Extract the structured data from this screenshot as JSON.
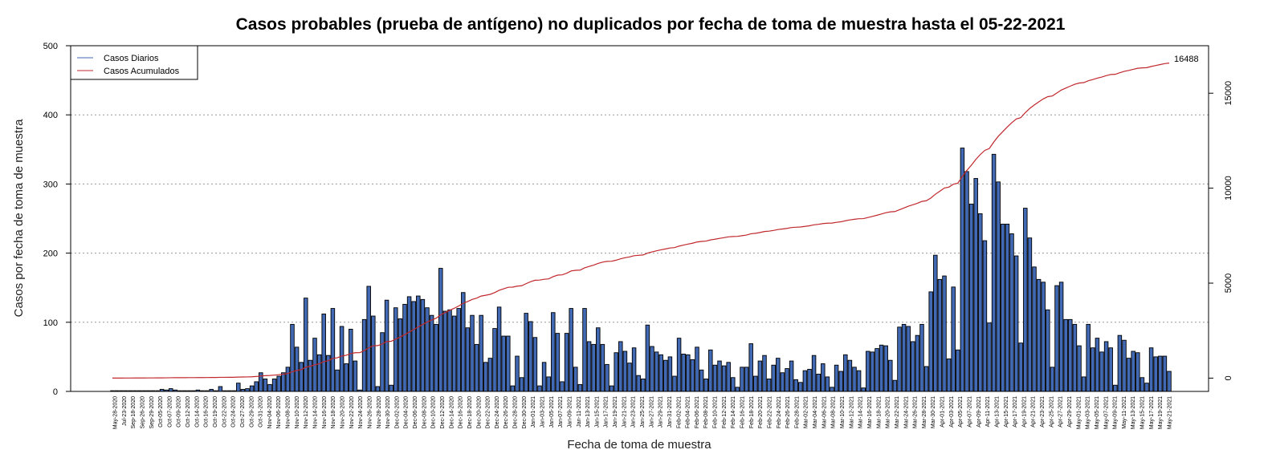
{
  "chart_data": {
    "type": "bar",
    "title": "Casos probables (prueba de antígeno) no duplicados por fecha de toma de muestra hasta el 05-22-2021",
    "xlabel": "Fecha de toma de muestra",
    "ylabel": "Casos por fecha de toma de muestra",
    "ylim": [
      0,
      500
    ],
    "y2lim": [
      -700,
      17500
    ],
    "yticks": [
      0,
      100,
      200,
      300,
      400,
      500
    ],
    "y2ticks": [
      0,
      5000,
      10000,
      15000
    ],
    "grid": "horizontal dotted",
    "legend_position": "top-left",
    "end_label": "16488",
    "colors": {
      "bars": "#4169b4",
      "line": "#c0282d"
    },
    "series": [
      {
        "name": "Casos Diarios",
        "type": "bar"
      },
      {
        "name": "Casos Acumulados",
        "type": "line"
      }
    ],
    "tick_labels": [
      "May-28-2020",
      "Jul-23-2020",
      "Sep-18-2020",
      "Sep-26-2020",
      "Sep-29-2020",
      "Oct-05-2020",
      "Oct-07-2020",
      "Oct-09-2020",
      "Oct-12-2020",
      "Oct-14-2020",
      "Oct-16-2020",
      "Oct-19-2020",
      "Oct-22-2020",
      "Oct-24-2020",
      "Oct-27-2020",
      "Oct-29-2020",
      "Oct-31-2020",
      "Nov-04-2020",
      "Nov-06-2020",
      "Nov-08-2020",
      "Nov-10-2020",
      "Nov-12-2020",
      "Nov-14-2020",
      "Nov-16-2020",
      "Nov-18-2020",
      "Nov-20-2020",
      "Nov-22-2020",
      "Nov-24-2020",
      "Nov-26-2020",
      "Nov-28-2020",
      "Nov-30-2020",
      "Dec-02-2020",
      "Dec-04-2020",
      "Dec-06-2020",
      "Dec-08-2020",
      "Dec-10-2020",
      "Dec-12-2020",
      "Dec-14-2020",
      "Dec-16-2020",
      "Dec-18-2020",
      "Dec-20-2020",
      "Dec-22-2020",
      "Dec-24-2020",
      "Dec-26-2020",
      "Dec-28-2020",
      "Dec-30-2020",
      "Jan-01-2021",
      "Jan-03-2021",
      "Jan-05-2021",
      "Jan-07-2021",
      "Jan-09-2021",
      "Jan-11-2021",
      "Jan-13-2021",
      "Jan-15-2021",
      "Jan-17-2021",
      "Jan-19-2021",
      "Jan-21-2021",
      "Jan-23-2021",
      "Jan-25-2021",
      "Jan-27-2021",
      "Jan-29-2021",
      "Jan-31-2021",
      "Feb-02-2021",
      "Feb-04-2021",
      "Feb-06-2021",
      "Feb-08-2021",
      "Feb-10-2021",
      "Feb-12-2021",
      "Feb-14-2021",
      "Feb-16-2021",
      "Feb-18-2021",
      "Feb-20-2021",
      "Feb-22-2021",
      "Feb-24-2021",
      "Feb-26-2021",
      "Feb-28-2021",
      "Mar-02-2021",
      "Mar-04-2021",
      "Mar-06-2021",
      "Mar-08-2021",
      "Mar-10-2021",
      "Mar-12-2021",
      "Mar-14-2021",
      "Mar-16-2021",
      "Mar-18-2021",
      "Mar-20-2021",
      "Mar-22-2021",
      "Mar-24-2021",
      "Mar-26-2021",
      "Mar-28-2021",
      "Mar-30-2021",
      "Apr-01-2021",
      "Apr-03-2021",
      "Apr-05-2021",
      "Apr-07-2021",
      "Apr-09-2021",
      "Apr-11-2021",
      "Apr-13-2021",
      "Apr-15-2021",
      "Apr-17-2021",
      "Apr-19-2021",
      "Apr-21-2021",
      "Apr-23-2021",
      "Apr-25-2021",
      "Apr-27-2021",
      "Apr-29-2021",
      "May-01-2021",
      "May-03-2021",
      "May-05-2021",
      "May-07-2021",
      "May-09-2021",
      "May-11-2021",
      "May-13-2021",
      "May-15-2021",
      "May-17-2021",
      "May-19-2021",
      "May-21-2021"
    ],
    "daily_values": [
      1,
      1,
      1,
      1,
      1,
      1,
      1,
      1,
      1,
      1,
      1,
      3,
      2,
      4,
      2,
      1,
      1,
      1,
      1,
      2,
      1,
      1,
      3,
      1,
      7,
      1,
      1,
      1,
      12,
      3,
      4,
      8,
      14,
      27,
      18,
      10,
      18,
      22,
      27,
      35,
      97,
      64,
      42,
      135,
      45,
      77,
      53,
      112,
      52,
      120,
      31,
      94,
      40,
      90,
      44,
      2,
      104,
      152,
      109,
      7,
      85,
      132,
      9,
      121,
      105,
      126,
      137,
      130,
      138,
      133,
      121,
      110,
      97,
      178,
      116,
      118,
      109,
      120,
      143,
      92,
      110,
      68,
      110,
      42,
      48,
      91,
      122,
      80,
      80,
      8,
      51,
      20,
      113,
      101,
      78,
      8,
      42,
      21,
      114,
      84,
      14,
      84,
      120,
      35,
      10,
      120,
      72,
      68,
      92,
      68,
      39,
      8,
      56,
      72,
      58,
      41,
      63,
      23,
      18,
      96,
      65,
      57,
      53,
      45,
      50,
      22,
      77,
      54,
      53,
      46,
      64,
      31,
      18,
      60,
      38,
      44,
      37,
      42,
      20,
      6,
      35,
      35,
      69,
      22,
      44,
      52,
      18,
      38,
      48,
      27,
      33,
      44,
      17,
      13,
      30,
      32,
      52,
      25,
      40,
      21,
      6,
      38,
      29,
      53,
      45,
      35,
      30,
      5,
      58,
      57,
      62,
      67,
      66,
      45,
      16,
      93,
      97,
      94,
      72,
      81,
      97,
      36,
      144,
      197,
      162,
      167,
      47,
      151,
      60,
      352,
      318,
      271,
      308,
      257,
      218,
      99,
      343,
      303,
      242,
      242,
      228,
      196,
      70,
      265,
      222,
      180,
      162,
      158,
      118,
      35,
      153,
      158,
      104,
      104,
      97,
      66,
      21,
      97,
      63,
      77,
      57,
      72,
      63,
      9,
      81,
      74,
      48,
      58,
      56,
      20,
      12,
      63,
      50,
      51,
      51,
      29
    ]
  }
}
